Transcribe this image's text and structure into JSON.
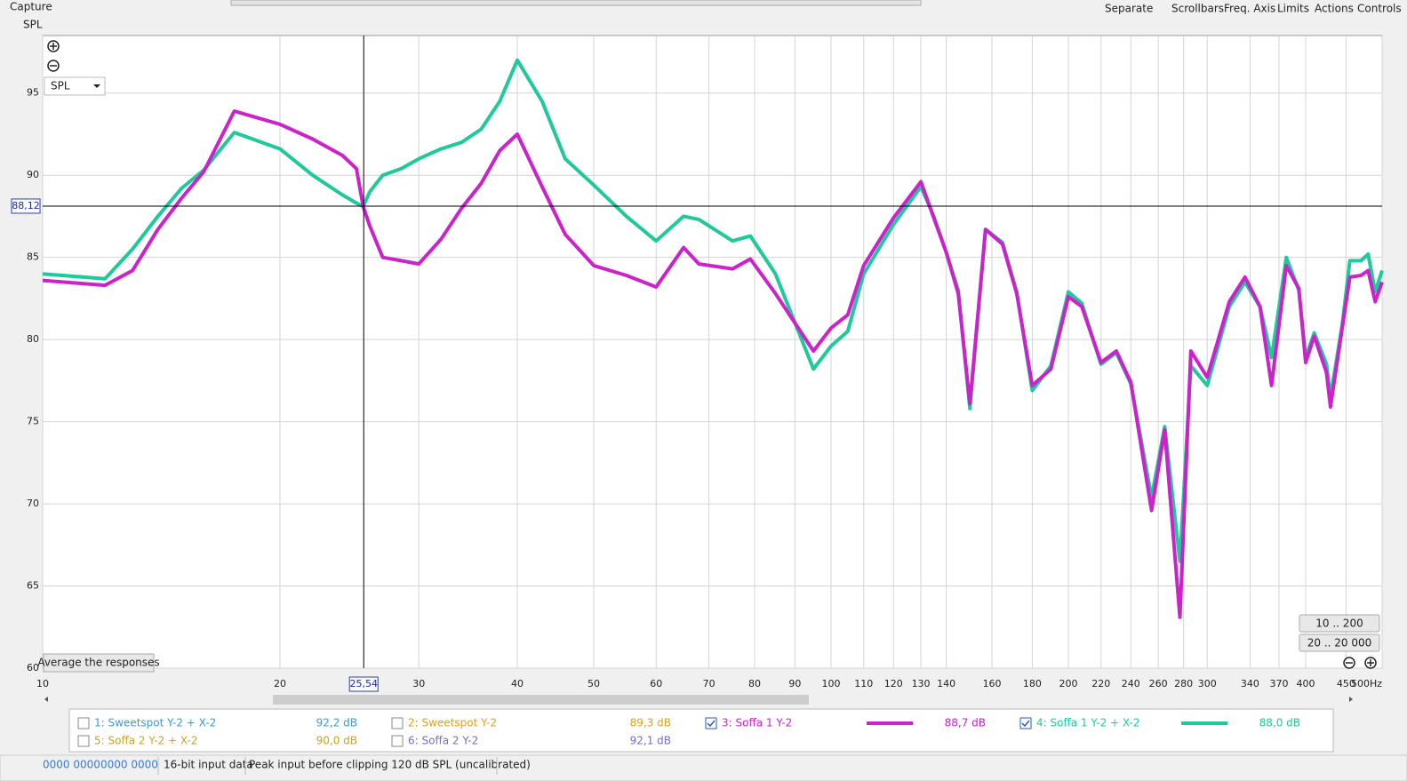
{
  "toolbar": {
    "capture": "Capture",
    "menu": [
      "Separate",
      "Scrollbars",
      "Freq. Axis",
      "Limits",
      "Actions",
      "Controls"
    ]
  },
  "chart_data": {
    "type": "line",
    "y_axis_label": "SPL",
    "x": [
      10,
      12,
      13,
      14,
      15,
      16,
      17.5,
      20,
      22,
      24,
      25,
      25.5,
      26,
      27,
      28.5,
      30,
      32,
      34,
      36,
      38,
      40,
      43,
      46,
      50,
      55,
      60,
      65,
      68,
      75,
      79,
      85,
      95,
      100,
      105,
      110,
      120,
      130,
      135,
      140,
      145,
      150,
      157,
      165,
      172,
      180,
      190,
      200,
      208,
      220,
      230,
      240,
      255,
      265,
      277,
      286,
      300,
      320,
      335,
      350,
      362,
      378,
      392,
      400,
      410,
      425,
      430,
      445,
      455,
      470,
      480,
      490,
      500
    ],
    "series": [
      {
        "name": "3: Soffa 1 Y-2",
        "color": "#cc22cc",
        "level": "88,7 dB",
        "values": [
          83.6,
          83.3,
          84.2,
          86.7,
          88.6,
          90.2,
          93.9,
          93.1,
          92.2,
          91.2,
          90.4,
          88.1,
          86.9,
          85.0,
          84.8,
          84.6,
          86.1,
          88.0,
          89.5,
          91.5,
          92.5,
          89.3,
          86.4,
          84.5,
          83.9,
          83.2,
          85.6,
          84.6,
          84.3,
          84.9,
          82.8,
          79.3,
          80.7,
          81.5,
          84.5,
          87.4,
          89.6,
          87.4,
          85.3,
          82.8,
          76.1,
          86.7,
          85.8,
          82.8,
          77.2,
          78.2,
          82.6,
          82.0,
          78.6,
          79.3,
          77.4,
          69.6,
          74.5,
          63.1,
          79.3,
          77.7,
          82.3,
          83.8,
          82.0,
          77.2,
          84.5,
          83.1,
          78.6,
          80.2,
          78.0,
          75.9,
          80.7,
          83.8,
          83.9,
          84.2,
          82.3,
          83.5
        ]
      },
      {
        "name": "4: Soffa 1 Y-2 + X-2",
        "color": "#1fc99a",
        "level": "88,0 dB",
        "values": [
          84.0,
          83.7,
          85.5,
          87.5,
          89.2,
          90.3,
          92.6,
          91.6,
          90.0,
          88.8,
          88.3,
          88.1,
          89.0,
          90.0,
          90.4,
          91.0,
          91.6,
          92.0,
          92.8,
          94.5,
          97.0,
          94.5,
          91.0,
          89.4,
          87.5,
          86.0,
          87.5,
          87.3,
          86.0,
          86.3,
          84.0,
          78.2,
          79.6,
          80.5,
          84.0,
          87.0,
          89.3,
          87.5,
          85.3,
          83.0,
          75.8,
          86.7,
          85.9,
          82.9,
          76.9,
          78.4,
          82.9,
          82.2,
          78.5,
          79.2,
          77.3,
          70.4,
          74.7,
          66.5,
          78.4,
          77.2,
          82.0,
          83.5,
          82.0,
          78.9,
          85.0,
          83.0,
          78.9,
          80.4,
          78.5,
          76.5,
          80.9,
          84.8,
          84.8,
          85.2,
          82.9,
          84.2
        ]
      }
    ],
    "other_measurements": [
      {
        "name": "1: Sweetspot Y-2 + X-2",
        "color": "#3a9bd6",
        "level": "92,2 dB"
      },
      {
        "name": "2: Sweetspot  Y-2",
        "color": "#e0a020",
        "level": "89,3 dB"
      },
      {
        "name": "5: Soffa 2 Y-2 + X-2",
        "color": "#c9a227",
        "level": "90,0 dB"
      },
      {
        "name": "6: Soffa 2 Y-2",
        "color": "#7a6ad0",
        "level": "92,1 dB"
      }
    ],
    "xlim": [
      10,
      500
    ],
    "ylim": [
      60,
      98.5
    ],
    "log_x": true,
    "grid": true,
    "xticks": [
      10,
      20,
      25.54,
      30,
      40,
      50,
      60,
      70,
      80,
      90,
      100,
      110,
      120,
      130,
      140,
      160,
      180,
      200,
      220,
      240,
      260,
      280,
      300,
      340,
      370,
      400,
      450,
      {
        "value": 500,
        "label": "500Hz"
      }
    ],
    "yticks": [
      60,
      65,
      70,
      75,
      80,
      85,
      90,
      95
    ],
    "cursor": {
      "x": {
        "value": 25.54,
        "label": "25,54"
      },
      "y": {
        "value": 88.12,
        "label": "88,12"
      }
    }
  },
  "controls": {
    "dropdown": "SPL",
    "average": "Average the responses",
    "range_buttons": [
      "10 .. 200",
      "20 .. 20 000"
    ]
  },
  "status_bar": [
    "0000 0000",
    "0000 0000",
    "16-bit input data",
    "Peak input before clipping 120 dB SPL (uncalibrated)"
  ]
}
